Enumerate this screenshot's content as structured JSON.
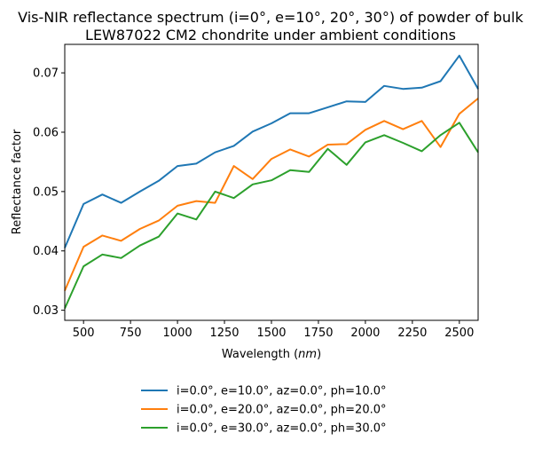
{
  "chart_data": {
    "type": "line",
    "title": "Vis-NIR reflectance spectrum (i=0°, e=10°, 20°, 30°) of powder of bulk",
    "title_line2": "LEW87022 CM2 chondrite under ambient conditions",
    "xlabel": "Wavelength (",
    "xlabel_unit": "nm",
    "xlabel_end": ")",
    "ylabel": "Reflectance factor",
    "xlim": [
      400,
      2600
    ],
    "ylim": [
      0.0283,
      0.0748
    ],
    "xticks": [
      500,
      750,
      1000,
      1250,
      1500,
      1750,
      2000,
      2250,
      2500
    ],
    "yticks": [
      0.03,
      0.04,
      0.05,
      0.06,
      0.07
    ],
    "grid": false,
    "legend_position": "bottom-center",
    "x": [
      400,
      500,
      600,
      700,
      800,
      900,
      1000,
      1100,
      1200,
      1300,
      1400,
      1500,
      1600,
      1700,
      1800,
      1900,
      2000,
      2100,
      2200,
      2300,
      2400,
      2500,
      2600
    ],
    "series": [
      {
        "name": "i=0.0°, e=10.0°, az=0.0°, ph=10.0°",
        "color": "#1f77b4",
        "values": [
          0.0405,
          0.0479,
          0.0495,
          0.0481,
          0.05,
          0.0518,
          0.0543,
          0.0547,
          0.0566,
          0.0577,
          0.0601,
          0.0615,
          0.0632,
          0.0632,
          0.0642,
          0.0652,
          0.0651,
          0.0678,
          0.0673,
          0.0675,
          0.0686,
          0.0729,
          0.0673
        ]
      },
      {
        "name": "i=0.0°, e=20.0°, az=0.0°, ph=20.0°",
        "color": "#ff7f0e",
        "values": [
          0.0333,
          0.0407,
          0.0426,
          0.0417,
          0.0437,
          0.0451,
          0.0476,
          0.0484,
          0.0481,
          0.0543,
          0.0521,
          0.0555,
          0.0571,
          0.0559,
          0.0579,
          0.058,
          0.0604,
          0.0619,
          0.0605,
          0.0619,
          0.0575,
          0.0631,
          0.0657
        ]
      },
      {
        "name": "i=0.0°, e=30.0°, az=0.0°, ph=30.0°",
        "color": "#2ca02c",
        "values": [
          0.0303,
          0.0374,
          0.0394,
          0.0388,
          0.0409,
          0.0424,
          0.0463,
          0.0453,
          0.05,
          0.0489,
          0.0512,
          0.0519,
          0.0536,
          0.0533,
          0.0572,
          0.0545,
          0.0583,
          0.0595,
          0.0582,
          0.0568,
          0.0595,
          0.0616,
          0.0566
        ]
      }
    ]
  }
}
